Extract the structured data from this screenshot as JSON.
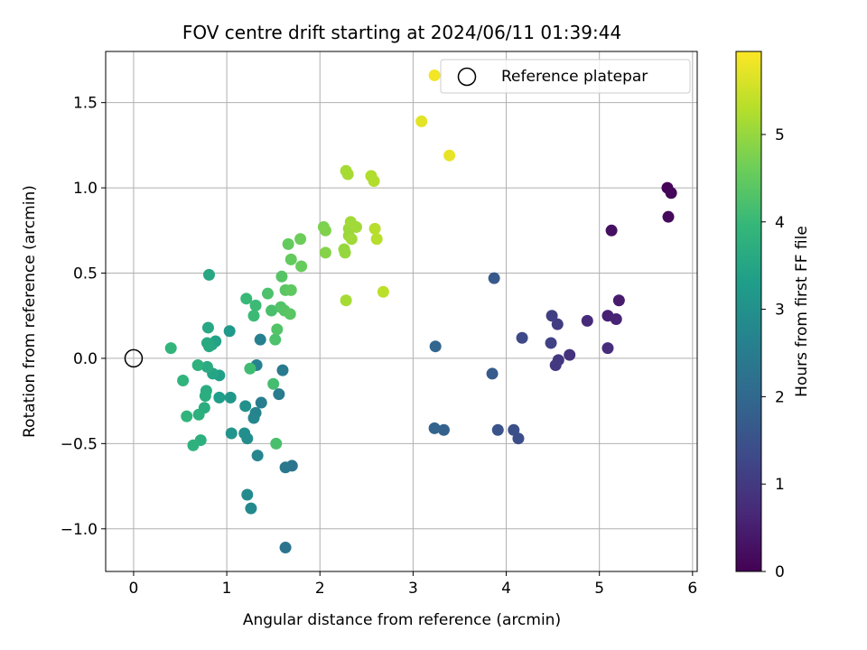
{
  "chart_data": {
    "type": "scatter",
    "title": "FOV centre drift starting at 2024/06/11 01:39:44",
    "xlabel": "Angular distance from reference (arcmin)",
    "ylabel": "Rotation from reference (arcmin)",
    "xlim": [
      -0.3,
      6.05
    ],
    "ylim": [
      -1.25,
      1.8
    ],
    "xticks": [
      0,
      1,
      2,
      3,
      4,
      5,
      6
    ],
    "xtick_labels": [
      "0",
      "1",
      "2",
      "3",
      "4",
      "5",
      "6"
    ],
    "yticks": [
      -1.0,
      -0.5,
      0.0,
      0.5,
      1.0,
      1.5
    ],
    "ytick_labels": [
      "−1.0",
      "−0.5",
      "0.0",
      "0.5",
      "1.0",
      "1.5"
    ],
    "grid": true,
    "legend": {
      "placement": "top-right",
      "entries": [
        "Reference platepar"
      ]
    },
    "reference_point": {
      "x": 0,
      "y": 0
    },
    "colorbar": {
      "label": "Hours from first FF file",
      "colormap": "viridis",
      "range": [
        0,
        5.95
      ],
      "ticks": [
        0,
        1,
        2,
        3,
        4,
        5
      ],
      "tick_labels": [
        "0",
        "1",
        "2",
        "3",
        "4",
        "5"
      ]
    },
    "points": [
      {
        "x": 5.73,
        "y": 1.0,
        "c": 0.05
      },
      {
        "x": 5.77,
        "y": 0.97,
        "c": 0.1
      },
      {
        "x": 5.74,
        "y": 0.83,
        "c": 0.15
      },
      {
        "x": 5.13,
        "y": 0.75,
        "c": 0.25
      },
      {
        "x": 5.21,
        "y": 0.34,
        "c": 0.45
      },
      {
        "x": 5.09,
        "y": 0.25,
        "c": 0.55
      },
      {
        "x": 5.18,
        "y": 0.23,
        "c": 0.6
      },
      {
        "x": 4.87,
        "y": 0.22,
        "c": 0.7
      },
      {
        "x": 5.09,
        "y": 0.06,
        "c": 0.75
      },
      {
        "x": 4.68,
        "y": 0.02,
        "c": 0.85
      },
      {
        "x": 4.56,
        "y": -0.01,
        "c": 0.95
      },
      {
        "x": 4.53,
        "y": -0.04,
        "c": 1.0
      },
      {
        "x": 4.55,
        "y": 0.2,
        "c": 1.05
      },
      {
        "x": 4.49,
        "y": 0.25,
        "c": 1.1
      },
      {
        "x": 4.48,
        "y": 0.09,
        "c": 1.15
      },
      {
        "x": 4.17,
        "y": 0.12,
        "c": 1.3
      },
      {
        "x": 4.13,
        "y": -0.47,
        "c": 1.4
      },
      {
        "x": 4.08,
        "y": -0.42,
        "c": 1.45
      },
      {
        "x": 3.91,
        "y": -0.42,
        "c": 1.55
      },
      {
        "x": 3.87,
        "y": 0.47,
        "c": 1.65
      },
      {
        "x": 3.85,
        "y": -0.09,
        "c": 1.7
      },
      {
        "x": 3.33,
        "y": -0.42,
        "c": 1.85
      },
      {
        "x": 3.23,
        "y": -0.41,
        "c": 1.9
      },
      {
        "x": 3.24,
        "y": 0.07,
        "c": 1.95
      },
      {
        "x": 1.63,
        "y": -1.11,
        "c": 2.3
      },
      {
        "x": 1.7,
        "y": -0.63,
        "c": 2.35
      },
      {
        "x": 1.63,
        "y": -0.64,
        "c": 2.4
      },
      {
        "x": 1.6,
        "y": -0.07,
        "c": 2.45
      },
      {
        "x": 1.56,
        "y": -0.21,
        "c": 2.5
      },
      {
        "x": 1.37,
        "y": -0.26,
        "c": 2.55
      },
      {
        "x": 1.36,
        "y": 0.11,
        "c": 2.6
      },
      {
        "x": 1.32,
        "y": -0.04,
        "c": 2.65
      },
      {
        "x": 1.31,
        "y": -0.32,
        "c": 2.7
      },
      {
        "x": 1.29,
        "y": -0.35,
        "c": 2.75
      },
      {
        "x": 1.33,
        "y": -0.57,
        "c": 2.75
      },
      {
        "x": 1.26,
        "y": -0.88,
        "c": 2.8
      },
      {
        "x": 1.22,
        "y": -0.8,
        "c": 2.85
      },
      {
        "x": 1.22,
        "y": -0.47,
        "c": 2.9
      },
      {
        "x": 1.19,
        "y": -0.44,
        "c": 2.95
      },
      {
        "x": 1.2,
        "y": -0.28,
        "c": 3.0
      },
      {
        "x": 1.05,
        "y": -0.44,
        "c": 3.1
      },
      {
        "x": 1.04,
        "y": -0.23,
        "c": 3.15
      },
      {
        "x": 1.03,
        "y": 0.16,
        "c": 3.2
      },
      {
        "x": 0.92,
        "y": -0.23,
        "c": 3.3
      },
      {
        "x": 0.92,
        "y": -0.1,
        "c": 3.35
      },
      {
        "x": 0.88,
        "y": 0.1,
        "c": 3.4
      },
      {
        "x": 0.84,
        "y": 0.08,
        "c": 3.45
      },
      {
        "x": 0.85,
        "y": -0.09,
        "c": 3.5
      },
      {
        "x": 0.81,
        "y": 0.49,
        "c": 3.55
      },
      {
        "x": 0.8,
        "y": 0.18,
        "c": 3.55
      },
      {
        "x": 0.79,
        "y": 0.09,
        "c": 3.6
      },
      {
        "x": 0.81,
        "y": 0.07,
        "c": 3.6
      },
      {
        "x": 0.79,
        "y": -0.05,
        "c": 3.65
      },
      {
        "x": 0.78,
        "y": -0.19,
        "c": 3.65
      },
      {
        "x": 0.77,
        "y": -0.22,
        "c": 3.7
      },
      {
        "x": 0.76,
        "y": -0.29,
        "c": 3.7
      },
      {
        "x": 0.7,
        "y": -0.33,
        "c": 3.75
      },
      {
        "x": 0.72,
        "y": -0.48,
        "c": 3.75
      },
      {
        "x": 0.64,
        "y": -0.51,
        "c": 3.8
      },
      {
        "x": 0.69,
        "y": -0.04,
        "c": 3.8
      },
      {
        "x": 0.57,
        "y": -0.34,
        "c": 3.85
      },
      {
        "x": 0.53,
        "y": -0.13,
        "c": 3.85
      },
      {
        "x": 0.4,
        "y": 0.06,
        "c": 3.9
      },
      {
        "x": 1.21,
        "y": 0.35,
        "c": 4.0
      },
      {
        "x": 1.29,
        "y": 0.25,
        "c": 4.05
      },
      {
        "x": 1.31,
        "y": 0.31,
        "c": 4.05
      },
      {
        "x": 1.25,
        "y": -0.06,
        "c": 4.1
      },
      {
        "x": 1.5,
        "y": -0.15,
        "c": 4.15
      },
      {
        "x": 1.53,
        "y": -0.5,
        "c": 4.2
      },
      {
        "x": 1.48,
        "y": 0.28,
        "c": 4.2
      },
      {
        "x": 1.44,
        "y": 0.38,
        "c": 4.25
      },
      {
        "x": 1.52,
        "y": 0.11,
        "c": 4.25
      },
      {
        "x": 1.54,
        "y": 0.17,
        "c": 4.3
      },
      {
        "x": 1.58,
        "y": 0.3,
        "c": 4.3
      },
      {
        "x": 1.59,
        "y": 0.48,
        "c": 4.35
      },
      {
        "x": 1.62,
        "y": 0.28,
        "c": 4.35
      },
      {
        "x": 1.63,
        "y": 0.4,
        "c": 4.4
      },
      {
        "x": 1.68,
        "y": 0.26,
        "c": 4.4
      },
      {
        "x": 1.69,
        "y": 0.4,
        "c": 4.45
      },
      {
        "x": 1.69,
        "y": 0.58,
        "c": 4.5
      },
      {
        "x": 1.66,
        "y": 0.67,
        "c": 4.5
      },
      {
        "x": 1.8,
        "y": 0.54,
        "c": 4.55
      },
      {
        "x": 1.79,
        "y": 0.7,
        "c": 4.6
      },
      {
        "x": 2.04,
        "y": 0.77,
        "c": 4.75
      },
      {
        "x": 2.06,
        "y": 0.75,
        "c": 4.8
      },
      {
        "x": 2.06,
        "y": 0.62,
        "c": 4.85
      },
      {
        "x": 2.26,
        "y": 0.64,
        "c": 5.0
      },
      {
        "x": 2.27,
        "y": 0.62,
        "c": 5.0
      },
      {
        "x": 2.31,
        "y": 0.72,
        "c": 5.05
      },
      {
        "x": 2.31,
        "y": 0.76,
        "c": 5.05
      },
      {
        "x": 2.33,
        "y": 0.8,
        "c": 5.1
      },
      {
        "x": 2.34,
        "y": 0.7,
        "c": 5.1
      },
      {
        "x": 2.39,
        "y": 0.77,
        "c": 5.1
      },
      {
        "x": 2.28,
        "y": 1.1,
        "c": 5.15
      },
      {
        "x": 2.3,
        "y": 1.08,
        "c": 5.15
      },
      {
        "x": 2.28,
        "y": 0.34,
        "c": 5.15
      },
      {
        "x": 2.55,
        "y": 1.07,
        "c": 5.25
      },
      {
        "x": 2.58,
        "y": 1.04,
        "c": 5.25
      },
      {
        "x": 2.59,
        "y": 0.76,
        "c": 5.3
      },
      {
        "x": 2.61,
        "y": 0.7,
        "c": 5.3
      },
      {
        "x": 2.68,
        "y": 0.39,
        "c": 5.35
      },
      {
        "x": 3.09,
        "y": 1.39,
        "c": 5.7
      },
      {
        "x": 3.39,
        "y": 1.19,
        "c": 5.75
      },
      {
        "x": 3.23,
        "y": 1.66,
        "c": 5.85
      }
    ]
  }
}
